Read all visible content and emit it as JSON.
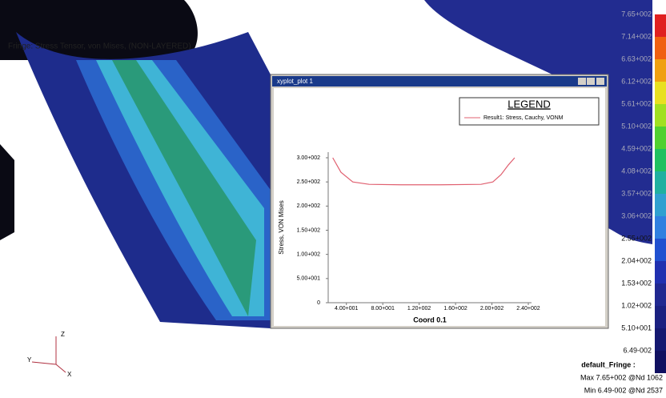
{
  "viewport": {
    "title_lines": [
      "Fringe: Stress Tensor, von Mises, (NON-LAYERED)"
    ]
  },
  "fringe": {
    "labels": [
      "7.65+002",
      "7.14+002",
      "6.63+002",
      "6.12+002",
      "5.61+002",
      "5.10+002",
      "4.59+002",
      "4.08+002",
      "3.57+002",
      "3.06+002",
      "2.55+002",
      "2.04+002",
      "1.53+002",
      "1.02+002",
      "5.10+001",
      "6.49-002"
    ],
    "info": [
      "default_Fringe :",
      "Max 7.65+002 @Nd 1062",
      "Min 6.49-002 @Nd 2537"
    ]
  },
  "triad": {
    "labels": [
      "Z",
      "Y",
      "X"
    ]
  },
  "chart_data": {
    "type": "line",
    "window_title": "xyplot_plot 1",
    "legend_title": "LEGEND",
    "x_label": "Coord 0.1",
    "y_label": "Stress, VON Mises",
    "xlim": [
      20,
      240
    ],
    "ylim": [
      0,
      300
    ],
    "xticks": [
      {
        "value": 40,
        "label": "4.00+001"
      },
      {
        "value": 80,
        "label": "8.00+001"
      },
      {
        "value": 120,
        "label": "1.20+002"
      },
      {
        "value": 160,
        "label": "1.60+002"
      },
      {
        "value": 200,
        "label": "2.00+002"
      },
      {
        "value": 240,
        "label": "2.40+002"
      }
    ],
    "yticks": [
      0,
      {
        "value": 50,
        "label": "5.00+001"
      },
      {
        "value": 100,
        "label": "1.00+002"
      },
      {
        "value": 150,
        "label": "1.50+002"
      },
      {
        "value": 200,
        "label": "2.00+002"
      },
      {
        "value": 250,
        "label": "2.50+002"
      },
      {
        "value": 300,
        "label": "3.00+002"
      }
    ],
    "series": [
      {
        "name": "Result1: Stress, Cauchy, VONM",
        "color": "#e06070",
        "x": [
          25,
          34,
          47,
          65,
          100,
          144,
          188,
          201,
          210,
          218,
          225
        ],
        "values": [
          300,
          270,
          250,
          245,
          244,
          244,
          245,
          250,
          265,
          285,
          300
        ]
      }
    ]
  }
}
